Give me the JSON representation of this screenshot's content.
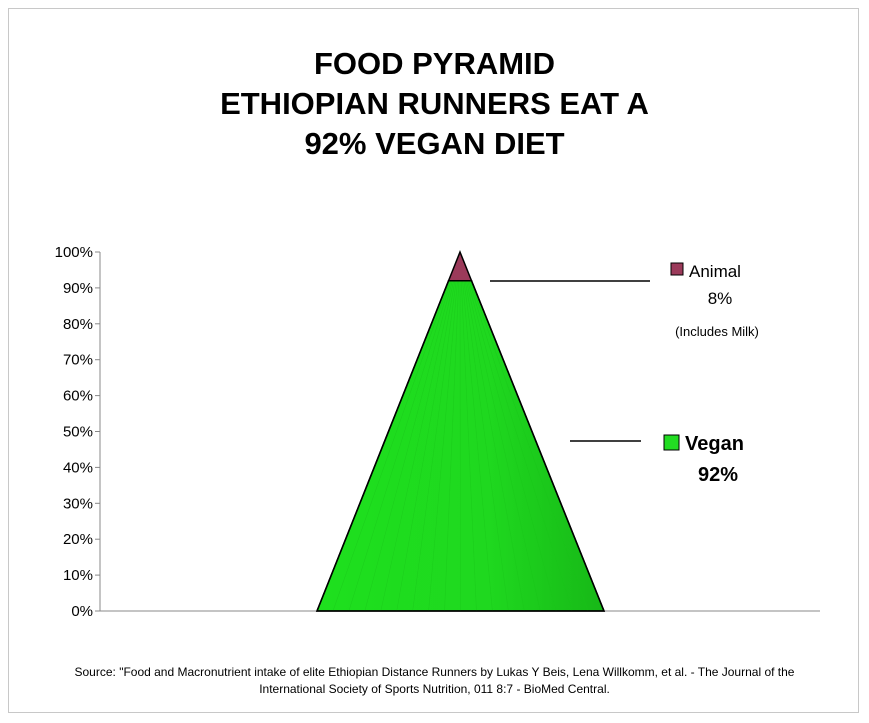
{
  "title_lines": [
    "FOOD PYRAMID",
    "ETHIOPIAN RUNNERS EAT A",
    "92% VEGAN DIET"
  ],
  "source_lines": [
    "Source: \"Food and Macronutrient intake of elite Ethiopian Distance Runners by Lukas Y Beis, Lena Willkomm, et al. - The Journal of the",
    "International Society of Sports Nutrition, 011 8:7 - BioMed Central."
  ],
  "chart_data": {
    "type": "area",
    "title": "FOOD PYRAMID ETHIOPIAN RUNNERS EAT A 92% VEGAN DIET",
    "ylim": [
      0,
      100
    ],
    "y_ticks": [
      "0%",
      "10%",
      "20%",
      "30%",
      "40%",
      "50%",
      "60%",
      "70%",
      "80%",
      "90%",
      "100%"
    ],
    "grid": false,
    "series": [
      {
        "name": "Vegan",
        "value": 92,
        "value_label": "92%",
        "color": "#22dd22"
      },
      {
        "name": "Animal",
        "value": 8,
        "value_label": "8%",
        "note": "(Includes Milk)",
        "color": "#9b3a5a"
      }
    ]
  },
  "colors": {
    "vegan": "#22dd22",
    "animal": "#9b3a5a",
    "outline": "#000000",
    "axis": "#888888"
  }
}
